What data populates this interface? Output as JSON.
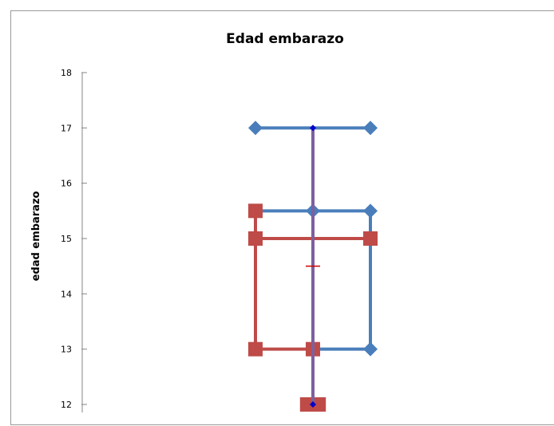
{
  "chart_data": {
    "type": "box",
    "title": "Edad embarazo",
    "ylabel": "edad embarazo",
    "xlabel": "",
    "ylim": [
      12,
      18
    ],
    "yticks": [
      12,
      13,
      14,
      15,
      16,
      17,
      18
    ],
    "grid": false,
    "legend": "none",
    "colors": {
      "blue": "#4a7ebb",
      "red": "#be4b48",
      "purple": "#7d60a0",
      "marker_dark": "#0000cc",
      "mean": "#cc0000",
      "axis": "#868686"
    },
    "series": [
      {
        "color": "blue",
        "marker": "diamond",
        "box": {
          "q1": 13,
          "q3": 15.5
        },
        "points": [
          {
            "x": -1,
            "y": 17
          },
          {
            "x": 1,
            "y": 17
          },
          {
            "x": 0,
            "y": 15.5
          },
          {
            "x": 1,
            "y": 15.5
          },
          {
            "x": 1,
            "y": 13
          }
        ]
      },
      {
        "color": "red",
        "marker": "square",
        "box": {
          "q1": 13,
          "q3": 15
        },
        "points": [
          {
            "x": -1,
            "y": 15.5
          },
          {
            "x": -1,
            "y": 15
          },
          {
            "x": 1,
            "y": 15
          },
          {
            "x": -1,
            "y": 13
          },
          {
            "x": 0,
            "y": 13
          },
          {
            "x": -0.1,
            "y": 12
          },
          {
            "x": 0.1,
            "y": 12
          }
        ]
      },
      {
        "color": "purple",
        "whisker": {
          "min": 12,
          "max": 17
        },
        "points": [
          {
            "x": 0,
            "y": 17
          },
          {
            "x": 0,
            "y": 12
          }
        ]
      }
    ],
    "mean": 14.5
  }
}
